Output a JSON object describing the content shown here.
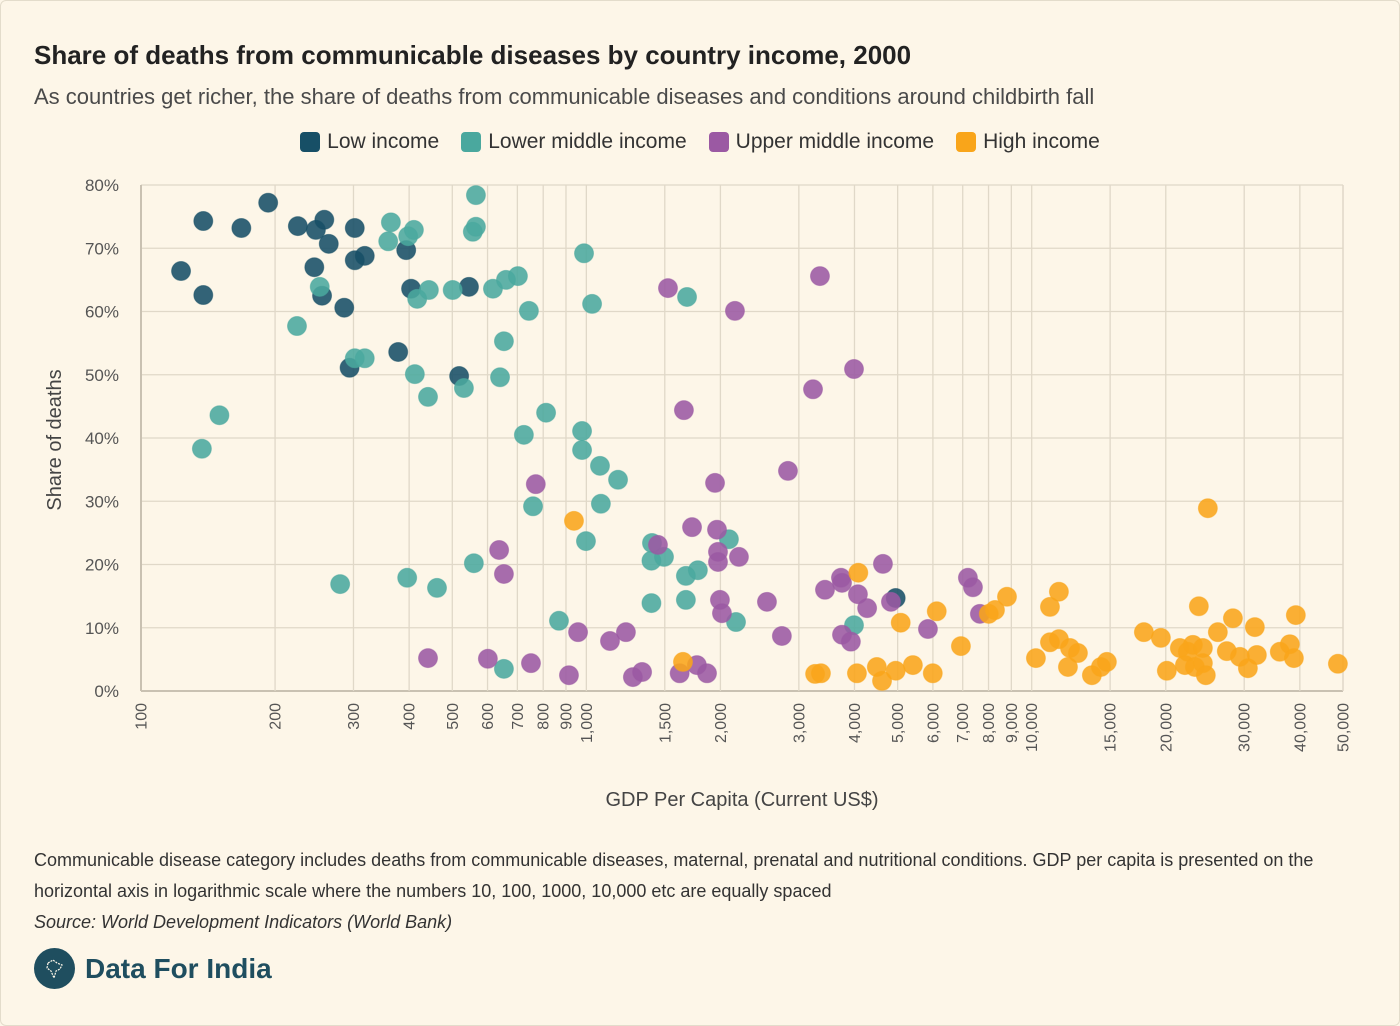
{
  "chart_data": {
    "type": "scatter",
    "title": "Share of deaths from communicable diseases by country income, 2000",
    "subtitle": "As countries get richer, the share of deaths from communicable diseases and conditions around childbirth fall",
    "xlabel": "GDP Per Capita (Current US$)",
    "ylabel": "Share of deaths",
    "xscale": "log",
    "xlim": [
      100,
      50000
    ],
    "ylim": [
      0,
      80
    ],
    "grid": true,
    "legend_position": "top",
    "x_ticks": [
      100,
      200,
      300,
      400,
      500,
      600,
      700,
      800,
      900,
      1000,
      1500,
      2000,
      3000,
      4000,
      5000,
      6000,
      7000,
      8000,
      9000,
      10000,
      15000,
      20000,
      30000,
      40000,
      50000
    ],
    "x_tick_labels": [
      "100",
      "200",
      "300",
      "400",
      "500",
      "600",
      "700",
      "800",
      "900",
      "1,000",
      "1,500",
      "2,000",
      "3,000",
      "4,000",
      "5,000",
      "6,000",
      "7,000",
      "8,000",
      "9,000",
      "10,000",
      "15,000",
      "20,000",
      "30,000",
      "40,000",
      "50,000"
    ],
    "y_ticks": [
      0,
      10,
      20,
      30,
      40,
      50,
      60,
      70,
      80
    ],
    "y_tick_labels": [
      "0%",
      "10%",
      "20%",
      "30%",
      "40%",
      "50%",
      "60%",
      "70%",
      "80%"
    ],
    "series": [
      {
        "name": "Low income",
        "color": "#174f66",
        "points": [
          [
            123,
            66.4
          ],
          [
            138,
            74.3
          ],
          [
            138,
            62.6
          ],
          [
            168,
            73.2
          ],
          [
            193,
            77.2
          ],
          [
            225,
            73.5
          ],
          [
            247,
            72.9
          ],
          [
            258,
            74.5
          ],
          [
            264,
            70.7
          ],
          [
            245,
            67.0
          ],
          [
            255,
            62.5
          ],
          [
            286,
            60.6
          ],
          [
            302,
            73.2
          ],
          [
            302,
            68.1
          ],
          [
            318,
            68.8
          ],
          [
            394,
            69.7
          ],
          [
            404,
            63.6
          ],
          [
            545,
            63.9
          ],
          [
            378,
            53.6
          ],
          [
            294,
            51.1
          ],
          [
            518,
            49.8
          ],
          [
            4950,
            14.7
          ]
        ]
      },
      {
        "name": "Lower middle income",
        "color": "#4aa89e",
        "points": [
          [
            137,
            38.3
          ],
          [
            150,
            43.6
          ],
          [
            224,
            57.7
          ],
          [
            252,
            63.9
          ],
          [
            280,
            16.9
          ],
          [
            302,
            52.6
          ],
          [
            318,
            52.6
          ],
          [
            359,
            71.1
          ],
          [
            364,
            74.1
          ],
          [
            398,
            71.9
          ],
          [
            410,
            72.9
          ],
          [
            417,
            62.0
          ],
          [
            443,
            63.4
          ],
          [
            501,
            63.4
          ],
          [
            396,
            17.9
          ],
          [
            412,
            50.1
          ],
          [
            441,
            46.5
          ],
          [
            462,
            16.3
          ],
          [
            531,
            47.9
          ],
          [
            559,
            20.2
          ],
          [
            565,
            78.4
          ],
          [
            556,
            72.6
          ],
          [
            565,
            73.4
          ],
          [
            617,
            63.6
          ],
          [
            660,
            65.0
          ],
          [
            702,
            65.6
          ],
          [
            640,
            49.6
          ],
          [
            653,
            55.3
          ],
          [
            743,
            60.1
          ],
          [
            653,
            3.5
          ],
          [
            724,
            40.5
          ],
          [
            812,
            44.0
          ],
          [
            759,
            29.2
          ],
          [
            868,
            11.1
          ],
          [
            988,
            69.2
          ],
          [
            1030,
            61.2
          ],
          [
            978,
            41.1
          ],
          [
            978,
            38.1
          ],
          [
            1073,
            35.6
          ],
          [
            1178,
            33.4
          ],
          [
            1078,
            29.6
          ],
          [
            998,
            23.7
          ],
          [
            1404,
            23.4
          ],
          [
            1400,
            20.6
          ],
          [
            1494,
            21.2
          ],
          [
            1400,
            13.9
          ],
          [
            1673,
            18.2
          ],
          [
            1780,
            19.1
          ],
          [
            1673,
            14.4
          ],
          [
            1683,
            62.3
          ],
          [
            2090,
            24.0
          ],
          [
            2168,
            10.9
          ],
          [
            3990,
            10.4
          ]
        ]
      },
      {
        "name": "Upper middle income",
        "color": "#9b59a3",
        "points": [
          [
            441,
            5.2
          ],
          [
            601,
            5.1
          ],
          [
            637,
            22.3
          ],
          [
            653,
            18.5
          ],
          [
            751,
            4.4
          ],
          [
            770,
            32.7
          ],
          [
            914,
            2.5
          ],
          [
            958,
            9.3
          ],
          [
            1130,
            7.9
          ],
          [
            1227,
            9.3
          ],
          [
            1272,
            2.2
          ],
          [
            1334,
            3.0
          ],
          [
            1448,
            23.1
          ],
          [
            1620,
            2.8
          ],
          [
            1771,
            4.1
          ],
          [
            1866,
            2.8
          ],
          [
            1656,
            44.4
          ],
          [
            1525,
            63.7
          ],
          [
            2156,
            60.1
          ],
          [
            1727,
            25.9
          ],
          [
            1945,
            32.9
          ],
          [
            1965,
            25.5
          ],
          [
            1975,
            22.0
          ],
          [
            1975,
            20.4
          ],
          [
            2201,
            21.2
          ],
          [
            1995,
            14.4
          ],
          [
            2016,
            12.3
          ],
          [
            2544,
            14.1
          ],
          [
            2748,
            8.7
          ],
          [
            2836,
            34.8
          ],
          [
            3346,
            65.6
          ],
          [
            3228,
            47.7
          ],
          [
            3990,
            50.9
          ],
          [
            3434,
            16.0
          ],
          [
            3730,
            17.9
          ],
          [
            3750,
            17.1
          ],
          [
            4072,
            15.3
          ],
          [
            4270,
            13.1
          ],
          [
            4634,
            20.1
          ],
          [
            4830,
            14.1
          ],
          [
            3750,
            8.9
          ],
          [
            3926,
            7.8
          ],
          [
            5848,
            9.8
          ],
          [
            7190,
            17.9
          ],
          [
            7380,
            16.4
          ],
          [
            7650,
            12.2
          ]
        ]
      },
      {
        "name": "High income",
        "color": "#f9a51a",
        "points": [
          [
            938,
            26.9
          ],
          [
            1648,
            4.6
          ],
          [
            3263,
            2.7
          ],
          [
            3363,
            2.8
          ],
          [
            4080,
            18.7
          ],
          [
            4051,
            2.8
          ],
          [
            4490,
            3.8
          ],
          [
            4612,
            1.6
          ],
          [
            4950,
            3.2
          ],
          [
            5410,
            4.1
          ],
          [
            5080,
            10.8
          ],
          [
            5996,
            2.8
          ],
          [
            6120,
            12.6
          ],
          [
            6935,
            7.1
          ],
          [
            8010,
            12.2
          ],
          [
            8270,
            12.8
          ],
          [
            8800,
            14.9
          ],
          [
            10220,
            5.2
          ],
          [
            10990,
            13.3
          ],
          [
            11510,
            15.7
          ],
          [
            10990,
            7.7
          ],
          [
            11510,
            8.2
          ],
          [
            12060,
            3.8
          ],
          [
            12190,
            6.8
          ],
          [
            12700,
            6.0
          ],
          [
            13650,
            2.5
          ],
          [
            14300,
            3.8
          ],
          [
            14750,
            4.6
          ],
          [
            17860,
            9.3
          ],
          [
            19500,
            8.4
          ],
          [
            20110,
            3.2
          ],
          [
            21510,
            6.8
          ],
          [
            22080,
            4.1
          ],
          [
            22420,
            6.2
          ],
          [
            23010,
            7.3
          ],
          [
            23250,
            3.8
          ],
          [
            24230,
            6.8
          ],
          [
            24230,
            4.4
          ],
          [
            24600,
            2.5
          ],
          [
            23730,
            13.4
          ],
          [
            24860,
            28.9
          ],
          [
            26180,
            9.3
          ],
          [
            27420,
            6.3
          ],
          [
            28300,
            11.5
          ],
          [
            29340,
            5.4
          ],
          [
            30580,
            3.6
          ],
          [
            31700,
            10.1
          ],
          [
            32030,
            5.7
          ],
          [
            36060,
            6.2
          ],
          [
            37990,
            7.4
          ],
          [
            38790,
            5.2
          ],
          [
            39180,
            12.0
          ],
          [
            48700,
            4.3
          ]
        ]
      }
    ]
  },
  "footer": {
    "note": "Communicable disease category includes deaths from communicable diseases, maternal, prenatal and nutritional conditions. GDP per capita is presented on the horizontal axis in logarithmic scale where the numbers 10, 100, 1000, 10,000 etc are equally spaced",
    "source": "Source: World Development Indicators (World Bank)",
    "brand": "Data For India"
  }
}
